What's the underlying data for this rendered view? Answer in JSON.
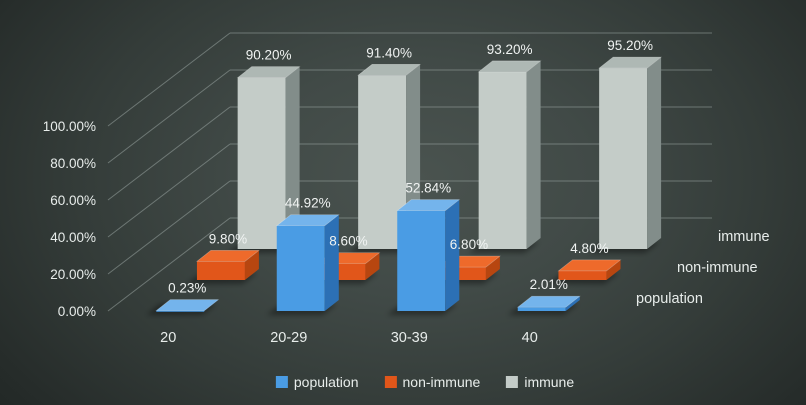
{
  "chart_data": {
    "type": "bar",
    "variant": "3d-clustered-depth",
    "title": "",
    "categories": [
      "20",
      "20-29",
      "30-39",
      "40"
    ],
    "series": [
      {
        "name": "population",
        "values": [
          0.23,
          44.92,
          52.84,
          2.01
        ],
        "labels": [
          "0.23%",
          "44.92%",
          "52.84%",
          "2.01%"
        ],
        "colors": {
          "front": "#4a9ce4",
          "top": "#74b4ec",
          "side": "#2c70b5"
        }
      },
      {
        "name": "non-immune",
        "values": [
          9.8,
          8.6,
          6.8,
          4.8
        ],
        "labels": [
          "9.80%",
          "8.60%",
          "6.80%",
          "4.80%"
        ],
        "colors": {
          "front": "#e1561a",
          "top": "#ee6a2b",
          "side": "#b74610"
        }
      },
      {
        "name": "immune",
        "values": [
          90.2,
          91.4,
          93.2,
          95.2
        ],
        "labels": [
          "90.20%",
          "91.40%",
          "93.20%",
          "95.20%"
        ],
        "colors": {
          "front": "#c4ccc8",
          "top": "#aeb8b4",
          "side": "#828d8a"
        }
      }
    ],
    "value_axis": {
      "ticks": [
        "0.00%",
        "20.00%",
        "40.00%",
        "60.00%",
        "80.00%",
        "100.00%"
      ],
      "tick_values": [
        0,
        20,
        40,
        60,
        80,
        100
      ],
      "min": 0,
      "max": 100
    },
    "series_axis_labels": [
      "population",
      "non-immune",
      "immune"
    ],
    "legend": {
      "position": "bottom",
      "items": [
        "population",
        "non-immune",
        "immune"
      ]
    },
    "grid": true,
    "colors": {
      "text": "#e8edeb",
      "gridline": "#9aa5a2",
      "background_outer": "#1b211f",
      "background_inner": "#4a534f"
    }
  }
}
